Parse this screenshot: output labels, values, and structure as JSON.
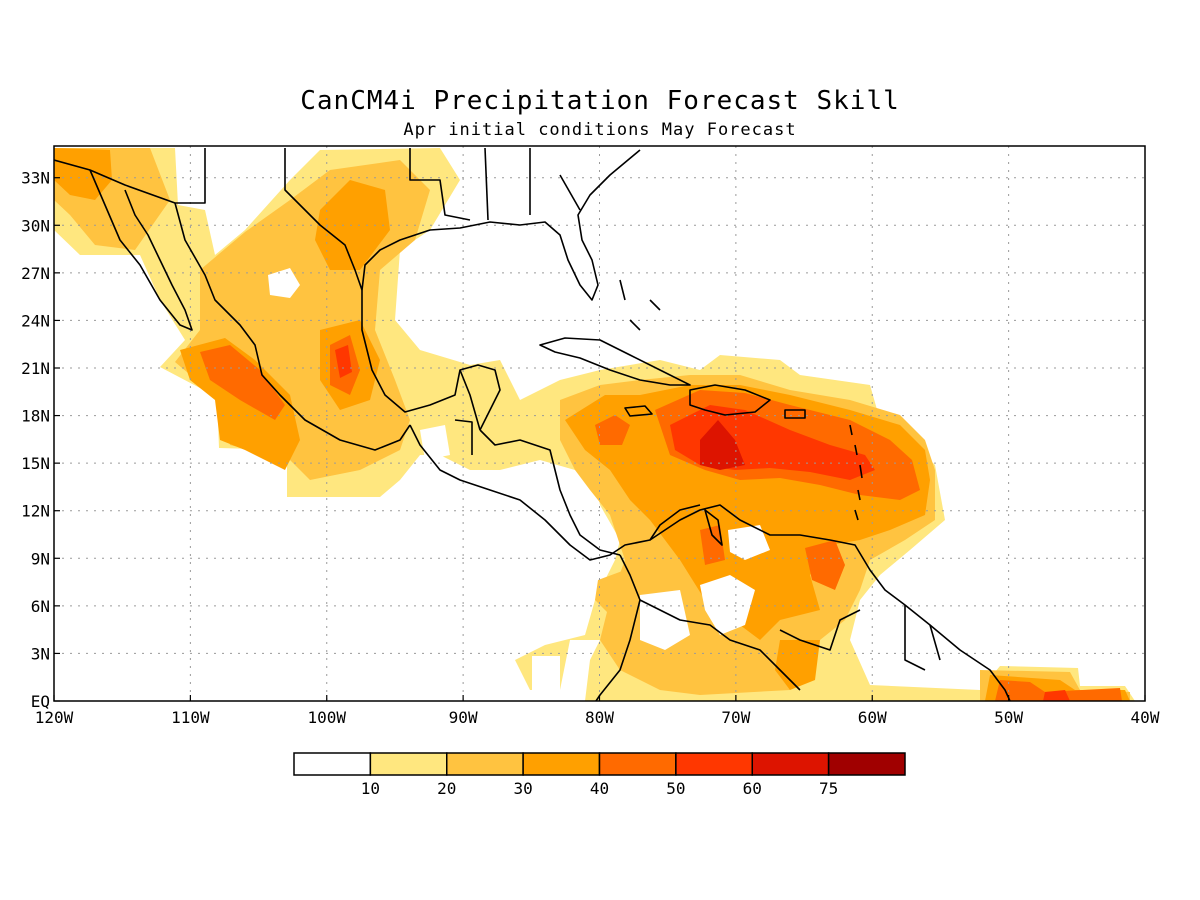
{
  "title": "CanCM4i Precipitation Forecast Skill",
  "subtitle": "Apr initial conditions  May Forecast",
  "map": {
    "lon_range": [
      -120,
      -40
    ],
    "lat_range": [
      0,
      35
    ],
    "grid": "dotted",
    "lon_ticks": [
      {
        "value": -120,
        "label": "120W"
      },
      {
        "value": -110,
        "label": "110W"
      },
      {
        "value": -100,
        "label": "100W"
      },
      {
        "value": -90,
        "label": "90W"
      },
      {
        "value": -80,
        "label": "80W"
      },
      {
        "value": -70,
        "label": "70W"
      },
      {
        "value": -60,
        "label": "60W"
      },
      {
        "value": -50,
        "label": "50W"
      },
      {
        "value": -40,
        "label": "40W"
      }
    ],
    "lat_ticks": [
      {
        "value": 0,
        "label": "EQ"
      },
      {
        "value": 3,
        "label": "3N"
      },
      {
        "value": 6,
        "label": "6N"
      },
      {
        "value": 9,
        "label": "9N"
      },
      {
        "value": 12,
        "label": "12N"
      },
      {
        "value": 15,
        "label": "15N"
      },
      {
        "value": 18,
        "label": "18N"
      },
      {
        "value": 21,
        "label": "21N"
      },
      {
        "value": 24,
        "label": "24N"
      },
      {
        "value": 27,
        "label": "27N"
      },
      {
        "value": 30,
        "label": "30N"
      },
      {
        "value": 33,
        "label": "33N"
      }
    ]
  },
  "legend": {
    "labels": [
      "10",
      "20",
      "30",
      "40",
      "50",
      "60",
      "75"
    ],
    "colors": [
      "#ffffff",
      "#ffe77f",
      "#ffc340",
      "#ffa000",
      "#ff6a00",
      "#ff3700",
      "#dd1400",
      "#a00000"
    ]
  }
}
